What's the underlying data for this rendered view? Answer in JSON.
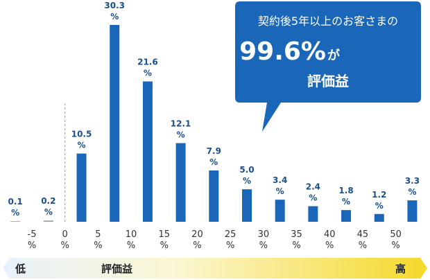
{
  "chart_data": {
    "type": "histogram",
    "bins": [
      -10,
      -5,
      0,
      5,
      10,
      15,
      20,
      25,
      30,
      35,
      40,
      45,
      50,
      55
    ],
    "values": [
      0.1,
      0.2,
      10.5,
      30.3,
      21.6,
      12.1,
      7.9,
      5.0,
      3.4,
      2.4,
      1.8,
      1.2,
      3.3
    ],
    "value_labels": [
      "0.1%",
      "0.2%",
      "10.5%",
      "30.3%",
      "21.6%",
      "12.1%",
      "7.9%",
      "5.0%",
      "3.4%",
      "2.4%",
      "1.8%",
      "1.2%",
      "3.3%"
    ],
    "colors": [
      "#a6a6a6",
      "#a6a6a6",
      "#1a66b8",
      "#1a66b8",
      "#1a66b8",
      "#1a66b8",
      "#1a66b8",
      "#1a66b8",
      "#1a66b8",
      "#1a66b8",
      "#1a66b8",
      "#1a66b8",
      "#1a66b8"
    ],
    "xlim": [
      -10,
      55
    ],
    "xticks": [
      {
        "value": -5,
        "label": "-5%"
      },
      {
        "value": 0,
        "label": "0%"
      },
      {
        "value": 5,
        "label": "5%"
      },
      {
        "value": 10,
        "label": "10%"
      },
      {
        "value": 15,
        "label": "15%"
      },
      {
        "value": 20,
        "label": "20%"
      },
      {
        "value": 25,
        "label": "25%"
      },
      {
        "value": 30,
        "label": "30%"
      },
      {
        "value": 35,
        "label": "35%"
      },
      {
        "value": 40,
        "label": "40%"
      },
      {
        "value": 45,
        "label": "45%"
      },
      {
        "value": 50,
        "label": "50%"
      }
    ],
    "ylim": [
      0,
      32
    ],
    "reference_line": 0,
    "callout": {
      "line1": "契約後5年以上のお客さまの",
      "highlight": "99.6%",
      "suffix": "が",
      "line3": "評価益"
    },
    "scale": {
      "low": "低",
      "label": "評価益",
      "high": "高"
    }
  }
}
